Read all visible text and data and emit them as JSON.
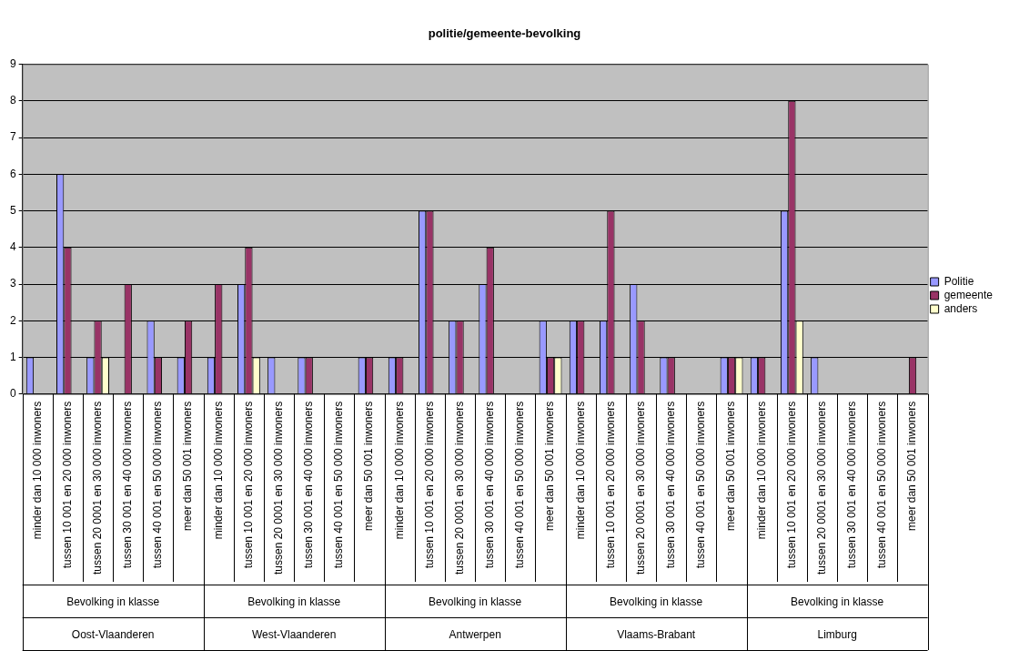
{
  "chart_data": {
    "type": "bar",
    "title": "politie/gemeente-bevolking",
    "categories": [
      "minder dan 10 000 inwoners",
      "tussen 10 001 en 20 000 inwoners",
      "tussen 20 0001 en 30 000 inwoners",
      "tussen 30 001 en 40 000 inwoners",
      "tussen 40 001 en 50 000 inwoners",
      "meer dan 50 001 inwoners",
      "minder dan 10 000 inwoners",
      "tussen 10 001 en 20 000 inwoners",
      "tussen 20 0001 en 30 000 inwoners",
      "tussen 30 001 en 40 000 inwoners",
      "tussen 40 001 en 50 000 inwoners",
      "meer dan 50 001 inwoners",
      "minder dan 10 000 inwoners",
      "tussen 10 001 en 20 000 inwoners",
      "tussen 20 0001 en 30 000 inwoners",
      "tussen 30 001 en 40 000 inwoners",
      "tussen 40 001 en 50 000 inwoners",
      "meer dan 50 001 inwoners",
      "minder dan 10 000 inwoners",
      "tussen 10 001 en 20 000 inwoners",
      "tussen 20 0001 en 30 000 inwoners",
      "tussen 30 001 en 40 000 inwoners",
      "tussen 40 001 en 50 000 inwoners",
      "meer dan 50 001 inwoners",
      "minder dan 10 000 inwoners",
      "tussen 10 001 en 20 000 inwoners",
      "tussen 20 0001 en 30 000 inwoners",
      "tussen 30 001 en 40 000 inwoners",
      "tussen 40 001 en 50 000 inwoners",
      "meer dan 50 001 inwoners"
    ],
    "series": [
      {
        "name": "Politie",
        "color": "#9999ff",
        "values": [
          1,
          6,
          1,
          null,
          2,
          1,
          1,
          3,
          1,
          1,
          null,
          1,
          1,
          5,
          2,
          3,
          null,
          2,
          2,
          2,
          3,
          1,
          null,
          1,
          1,
          5,
          1,
          null,
          null,
          null
        ]
      },
      {
        "name": "gemeente",
        "color": "#993366",
        "values": [
          null,
          4,
          2,
          3,
          1,
          2,
          3,
          4,
          null,
          1,
          null,
          1,
          1,
          5,
          2,
          4,
          null,
          1,
          2,
          5,
          2,
          1,
          null,
          1,
          1,
          8,
          null,
          null,
          null,
          1
        ]
      },
      {
        "name": "anders",
        "color": "#ffffcc",
        "values": [
          null,
          null,
          1,
          null,
          null,
          null,
          null,
          1,
          null,
          null,
          null,
          null,
          null,
          null,
          null,
          null,
          null,
          1,
          null,
          null,
          null,
          null,
          null,
          1,
          null,
          2,
          null,
          null,
          null,
          null
        ]
      }
    ],
    "ylim": [
      0,
      9
    ],
    "yticks": [
      0,
      1,
      2,
      3,
      4,
      5,
      6,
      7,
      8,
      9
    ],
    "grid": "y",
    "legend": "right",
    "annotations": [
      "Bevolking in klasse",
      "Bevolking in klasse",
      "Bevolking in klasse",
      "Bevolking in klasse",
      "Bevolking in klasse",
      "Oost-Vlaanderen",
      "West-Vlaanderen",
      "Antwerpen",
      "Vlaams-Brabant",
      "Limburg"
    ]
  }
}
